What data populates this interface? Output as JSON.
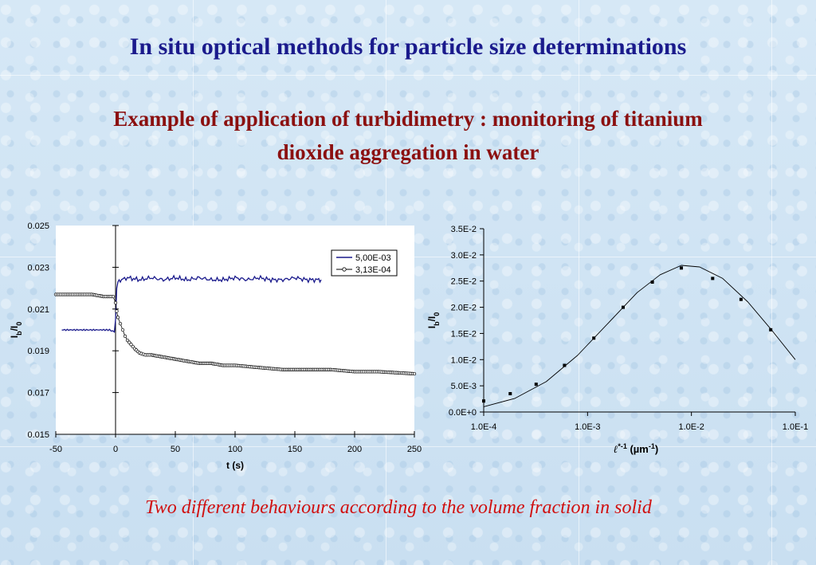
{
  "slide": {
    "title": "In situ optical methods for particle size determinations",
    "subtitle_line1": "Example of application of turbidimetry : monitoring of titanium",
    "subtitle_line2": "dioxide aggregation in water",
    "caption": "Two different behaviours according to the volume fraction in solid",
    "colors": {
      "title": "#1a1a8c",
      "subtitle": "#8b1010",
      "caption": "#d01010",
      "series_dark": "#1a1a8c",
      "series_black": "#000000"
    }
  },
  "chart_data": [
    {
      "type": "line",
      "xlabel": "t (s)",
      "ylabel": "Ib/I0",
      "xlim": [
        -50,
        250
      ],
      "ylim": [
        0.015,
        0.025
      ],
      "xticks": [
        "-50",
        "0",
        "50",
        "100",
        "150",
        "200",
        "250"
      ],
      "yticks": [
        "0.015",
        "0.017",
        "0.019",
        "0.021",
        "0.023",
        "0.025"
      ],
      "legend_position": "top-right",
      "series": [
        {
          "name": "5,00E-03",
          "marker": "none",
          "x": [
            -45,
            -30,
            -15,
            -5,
            -1,
            0,
            1,
            2,
            3,
            5,
            10,
            20,
            30,
            40,
            50,
            60,
            70,
            80,
            90,
            100,
            110,
            120,
            130,
            140,
            150,
            160,
            170,
            172
          ],
          "y": [
            0.02,
            0.02,
            0.02,
            0.02,
            0.0199,
            0.0205,
            0.022,
            0.0223,
            0.0224,
            0.0224,
            0.0225,
            0.0224,
            0.0225,
            0.0224,
            0.0225,
            0.0224,
            0.0225,
            0.0224,
            0.0224,
            0.0225,
            0.0224,
            0.0225,
            0.0224,
            0.0224,
            0.0225,
            0.0224,
            0.0224,
            0.0224
          ]
        },
        {
          "name": "3,13E-04",
          "marker": "circle-open",
          "x": [
            -50,
            -40,
            -30,
            -20,
            -10,
            -2,
            0,
            1,
            2,
            4,
            6,
            8,
            10,
            13,
            16,
            20,
            25,
            30,
            40,
            50,
            60,
            70,
            80,
            90,
            100,
            120,
            140,
            160,
            180,
            200,
            220,
            250
          ],
          "y": [
            0.0217,
            0.0217,
            0.0217,
            0.0217,
            0.0216,
            0.0216,
            0.0213,
            0.0209,
            0.0206,
            0.0203,
            0.02,
            0.0197,
            0.0195,
            0.0193,
            0.0191,
            0.0189,
            0.0188,
            0.0188,
            0.0187,
            0.0186,
            0.0185,
            0.0184,
            0.0184,
            0.0183,
            0.0183,
            0.0182,
            0.0181,
            0.0181,
            0.0181,
            0.018,
            0.018,
            0.0179
          ]
        }
      ]
    },
    {
      "type": "scatter",
      "xlabel": "ℓ*-1 (µm-1)",
      "ylabel": "Ib/I0",
      "xscale": "log",
      "xlim": [
        0.0001,
        0.1
      ],
      "ylim": [
        0,
        0.035
      ],
      "xticks": [
        "1.0E-4",
        "1.0E-3",
        "1.0E-2",
        "1.0E-1"
      ],
      "yticks": [
        "0.0E+0",
        "5.0E-3",
        "1.0E-2",
        "1.5E-2",
        "2.0E-2",
        "2.5E-2",
        "3.0E-2",
        "3.5E-2"
      ],
      "series": [
        {
          "name": "",
          "marker": "square",
          "x": [
            0.0001,
            0.00018,
            0.00032,
            0.0006,
            0.00115,
            0.0022,
            0.0042,
            0.008,
            0.016,
            0.03,
            0.058
          ],
          "y": [
            0.0021,
            0.0035,
            0.0053,
            0.0089,
            0.0141,
            0.02,
            0.0248,
            0.0275,
            0.0255,
            0.0215,
            0.0157
          ]
        },
        {
          "name": "",
          "marker": "none",
          "x": [
            0.0001,
            0.0002,
            0.0004,
            0.0008,
            0.0015,
            0.003,
            0.005,
            0.008,
            0.012,
            0.02,
            0.035,
            0.06,
            0.1
          ],
          "y": [
            0.001,
            0.0026,
            0.0058,
            0.0108,
            0.0165,
            0.0228,
            0.0262,
            0.028,
            0.0277,
            0.0255,
            0.021,
            0.0155,
            0.01
          ]
        }
      ]
    }
  ]
}
